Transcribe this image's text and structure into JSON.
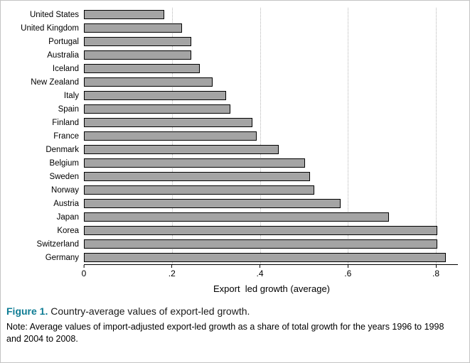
{
  "chart_data": {
    "type": "bar",
    "orientation": "horizontal",
    "title": "",
    "xlabel": "Export  led growth (average)",
    "ylabel": "",
    "categories": [
      "United States",
      "United Kingdom",
      "Portugal",
      "Australia",
      "Iceland",
      "New Zealand",
      "Italy",
      "Spain",
      "Finland",
      "France",
      "Denmark",
      "Belgium",
      "Sweden",
      "Norway",
      "Austria",
      "Japan",
      "Korea",
      "Switzerland",
      "Germany"
    ],
    "values": [
      0.18,
      0.22,
      0.24,
      0.24,
      0.26,
      0.29,
      0.32,
      0.33,
      0.38,
      0.39,
      0.44,
      0.5,
      0.51,
      0.52,
      0.58,
      0.69,
      0.8,
      0.8,
      0.82
    ],
    "xlim": [
      0,
      0.85
    ],
    "xticks": [
      0,
      0.2,
      0.4,
      0.6,
      0.8
    ],
    "xtick_labels": [
      "0",
      ".2",
      ".4",
      ".6",
      ".8"
    ],
    "grid": "dotted vertical at ticks",
    "legend": "none",
    "bar_color": "#a4a4a4",
    "bar_border_color": "#000000"
  },
  "caption": {
    "figure_label": "Figure 1.",
    "figure_title": " Country-average values of export-led growth.",
    "note": "Note: Average values of import-adjusted export-led growth as a share of total growth for the years 1996 to 1998 and 2004 to 2008."
  },
  "colors": {
    "caption_accent": "#0e7c94",
    "gridline": "#b5b5b5"
  }
}
